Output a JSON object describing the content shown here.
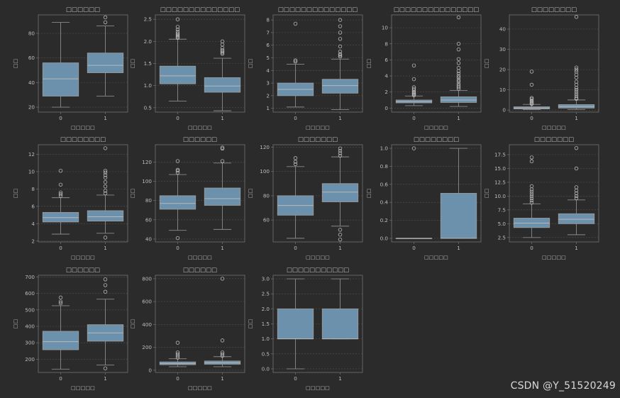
{
  "watermark": "CSDN @Y_51520249",
  "theme": {
    "background": "#2b2b2b",
    "box_fill": "#6b91ad",
    "box_edge": "#9a9a9a",
    "whisker": "#8a8a8a",
    "median": "#b8b8b8",
    "text": "#bdbdbd",
    "grid": "#505050",
    "spine": "#6a6a6a"
  },
  "chart_data": [
    {
      "type": "box",
      "title": "□□□□□□",
      "xlabel": "□□□□□",
      "ylabel": "□□",
      "categories": [
        "0",
        "1"
      ],
      "ylim": [
        16,
        95
      ],
      "yticks": [
        20,
        40,
        60,
        80
      ],
      "tick_labels": [
        "20",
        "40",
        "60",
        "80"
      ],
      "boxes": [
        {
          "whislo": 20,
          "q1": 29,
          "med": 43,
          "q3": 56,
          "whishi": 89,
          "fliers": []
        },
        {
          "whislo": 29,
          "q1": 48,
          "med": 54,
          "q3": 64,
          "whishi": 86,
          "fliers": [
            89,
            93
          ]
        }
      ]
    },
    {
      "type": "box",
      "title": "□□□□□□□□□□□□□□",
      "xlabel": "□□□□□",
      "ylabel": "□□",
      "categories": [
        "0",
        "1"
      ],
      "ylim": [
        0.4,
        2.6
      ],
      "yticks": [
        0.5,
        1.0,
        1.5,
        2.0,
        2.5
      ],
      "tick_labels": [
        "0.5",
        "1.0",
        "1.5",
        "2.0",
        "2.5"
      ],
      "boxes": [
        {
          "whislo": 0.65,
          "q1": 1.04,
          "med": 1.22,
          "q3": 1.44,
          "whishi": 2.05,
          "fliers": [
            2.08,
            2.1,
            2.13,
            2.15,
            2.18,
            2.22,
            2.27,
            2.33,
            2.5
          ]
        },
        {
          "whislo": 0.43,
          "q1": 0.85,
          "med": 0.99,
          "q3": 1.18,
          "whishi": 1.62,
          "fliers": [
            1.72,
            1.75,
            1.78,
            1.8,
            1.85,
            1.93,
            2.0
          ]
        }
      ]
    },
    {
      "type": "box",
      "title": "□□□□□□□□□□□□□□",
      "xlabel": "□□□□□",
      "ylabel": "□□",
      "categories": [
        "0",
        "1"
      ],
      "ylim": [
        0.7,
        8.4
      ],
      "yticks": [
        1,
        2,
        3,
        4,
        5,
        6,
        7,
        8
      ],
      "tick_labels": [
        "1",
        "2",
        "3",
        "4",
        "5",
        "6",
        "7",
        "8"
      ],
      "boxes": [
        {
          "whislo": 1.1,
          "q1": 2.0,
          "med": 2.5,
          "q3": 3.0,
          "whishi": 4.5,
          "fliers": [
            4.7,
            4.8,
            7.7
          ]
        },
        {
          "whislo": 0.9,
          "q1": 2.2,
          "med": 2.8,
          "q3": 3.3,
          "whishi": 4.9,
          "fliers": [
            5.1,
            5.2,
            5.3,
            5.5,
            5.9,
            6.5,
            7.0,
            7.5,
            8.0
          ]
        }
      ]
    },
    {
      "type": "box",
      "title": "□□□□□□□□□□□□□□□",
      "xlabel": "□□□□□",
      "ylabel": "□□",
      "categories": [
        "0",
        "1"
      ],
      "ylim": [
        -0.5,
        11.6
      ],
      "yticks": [
        0,
        2,
        4,
        6,
        8,
        10
      ],
      "tick_labels": [
        "0",
        "2",
        "4",
        "6",
        "8",
        "10"
      ],
      "boxes": [
        {
          "whislo": 0.3,
          "q1": 0.65,
          "med": 0.8,
          "q3": 1.0,
          "whishi": 1.5,
          "fliers": [
            1.6,
            1.7,
            1.8,
            1.9,
            2.0,
            2.2,
            2.4,
            2.6,
            3.6,
            5.3
          ]
        },
        {
          "whislo": 0.2,
          "q1": 0.7,
          "med": 1.0,
          "q3": 1.4,
          "whishi": 2.2,
          "fliers": [
            2.4,
            2.6,
            2.8,
            3.0,
            3.3,
            3.5,
            3.8,
            4.0,
            4.3,
            4.6,
            5.0,
            5.6,
            6.1,
            7.3,
            8.0,
            11.3
          ]
        }
      ]
    },
    {
      "type": "box",
      "title": "□□□□□□□□",
      "xlabel": "□□□□□",
      "ylabel": "□□",
      "categories": [
        "0",
        "1"
      ],
      "ylim": [
        -1,
        47
      ],
      "yticks": [
        0,
        10,
        20,
        30,
        40
      ],
      "tick_labels": [
        "0",
        "10",
        "20",
        "30",
        "40"
      ],
      "boxes": [
        {
          "whislo": 0.2,
          "q1": 0.6,
          "med": 1.0,
          "q3": 1.6,
          "whishi": 2.8,
          "fliers": [
            3.0,
            3.3,
            3.7,
            4.2,
            4.8,
            5.5,
            6.0,
            12.5,
            19.0
          ]
        },
        {
          "whislo": 0.3,
          "q1": 1.0,
          "med": 1.7,
          "q3": 2.7,
          "whishi": 5.0,
          "fliers": [
            5.5,
            6.0,
            7.0,
            8.0,
            9.0,
            10.0,
            11.0,
            12.5,
            14.0,
            16.0,
            17.5,
            19.0,
            20.0,
            21.0,
            46.0
          ]
        }
      ]
    },
    {
      "type": "box",
      "title": "□□□□□□□□",
      "xlabel": "□□□□□",
      "ylabel": "□□",
      "categories": [
        "0",
        "1"
      ],
      "ylim": [
        1.9,
        13.1
      ],
      "yticks": [
        2,
        4,
        6,
        8,
        10,
        12
      ],
      "tick_labels": [
        "2",
        "4",
        "6",
        "8",
        "10",
        "12"
      ],
      "boxes": [
        {
          "whislo": 2.8,
          "q1": 4.2,
          "med": 4.7,
          "q3": 5.3,
          "whishi": 7.0,
          "fliers": [
            7.2,
            7.4,
            7.6,
            8.5,
            10.1
          ]
        },
        {
          "whislo": 2.9,
          "q1": 4.3,
          "med": 4.8,
          "q3": 5.5,
          "whishi": 7.3,
          "fliers": [
            2.4,
            7.5,
            7.8,
            8.3,
            8.8,
            9.3,
            9.6,
            9.9,
            10.1,
            12.7
          ]
        }
      ]
    },
    {
      "type": "box",
      "title": "□□□□□□",
      "xlabel": "□□□□□",
      "ylabel": "□□",
      "categories": [
        "0",
        "1"
      ],
      "ylim": [
        37,
        138
      ],
      "yticks": [
        40,
        60,
        80,
        100,
        120
      ],
      "tick_labels": [
        "40",
        "60",
        "80",
        "100",
        "120"
      ],
      "boxes": [
        {
          "whislo": 49,
          "q1": 71,
          "med": 77,
          "q3": 85,
          "whishi": 107,
          "fliers": [
            41,
            109,
            111,
            112,
            121
          ]
        },
        {
          "whislo": 50,
          "q1": 75,
          "med": 82,
          "q3": 93,
          "whishi": 119,
          "fliers": [
            121,
            134,
            135
          ]
        }
      ]
    },
    {
      "type": "box",
      "title": "□□□□□□□",
      "xlabel": "□□□□□",
      "ylabel": "□□",
      "categories": [
        "0",
        "1"
      ],
      "ylim": [
        42,
        122
      ],
      "yticks": [
        60,
        80,
        100,
        120
      ],
      "tick_labels": [
        "60",
        "80",
        "100",
        "120"
      ],
      "boxes": [
        {
          "whislo": 45,
          "q1": 64,
          "med": 72,
          "q3": 80,
          "whishi": 104,
          "fliers": [
            106,
            108,
            111
          ]
        },
        {
          "whislo": 55,
          "q1": 75,
          "med": 83,
          "q3": 90,
          "whishi": 112,
          "fliers": [
            44,
            48,
            52,
            113,
            115,
            117,
            119
          ]
        }
      ]
    },
    {
      "type": "box",
      "title": "□□□□□□□□",
      "xlabel": "□□□□□",
      "ylabel": "□□",
      "categories": [
        "0",
        "1"
      ],
      "ylim": [
        -0.04,
        1.04
      ],
      "yticks": [
        0.0,
        0.2,
        0.4,
        0.6,
        0.8,
        1.0
      ],
      "tick_labels": [
        "0.0",
        "0.2",
        "0.4",
        "0.6",
        "0.8",
        "1.0"
      ],
      "boxes": [
        {
          "whislo": 0,
          "q1": 0,
          "med": 0,
          "q3": 0,
          "whishi": 0,
          "fliers": [
            1.0
          ]
        },
        {
          "whislo": 0,
          "q1": 0,
          "med": 0,
          "q3": 0.5,
          "whishi": 1.0,
          "fliers": []
        }
      ]
    },
    {
      "type": "box",
      "title": "□□□□□□□",
      "xlabel": "□□□□□",
      "ylabel": "□□",
      "categories": [
        "0",
        "1"
      ],
      "ylim": [
        1.7,
        19.3
      ],
      "yticks": [
        2.5,
        5.0,
        7.5,
        10.0,
        12.5,
        15.0,
        17.5
      ],
      "tick_labels": [
        "2.5",
        "5.0",
        "7.5",
        "10.0",
        "12.5",
        "15.0",
        "17.5"
      ],
      "boxes": [
        {
          "whislo": 2.5,
          "q1": 4.3,
          "med": 5.1,
          "q3": 6.0,
          "whishi": 8.6,
          "fliers": [
            8.8,
            9.2,
            9.6,
            10.0,
            10.4,
            10.8,
            11.2,
            11.8,
            16.3,
            17.0
          ]
        },
        {
          "whislo": 3.0,
          "q1": 5.0,
          "med": 5.8,
          "q3": 6.8,
          "whishi": 9.3,
          "fliers": [
            9.6,
            10.0,
            10.5,
            11.0,
            11.6,
            15.0,
            18.7
          ]
        }
      ]
    },
    {
      "type": "box",
      "title": "□□□□□□",
      "xlabel": "□□□□□",
      "ylabel": "□□",
      "categories": [
        "0",
        "1"
      ],
      "ylim": [
        120,
        710
      ],
      "yticks": [
        200,
        300,
        400,
        500,
        600,
        700
      ],
      "tick_labels": [
        "200",
        "300",
        "400",
        "500",
        "600",
        "700"
      ],
      "boxes": [
        {
          "whislo": 140,
          "q1": 258,
          "med": 307,
          "q3": 370,
          "whishi": 525,
          "fliers": [
            540,
            550,
            575
          ]
        },
        {
          "whislo": 165,
          "q1": 310,
          "med": 360,
          "q3": 410,
          "whishi": 565,
          "fliers": [
            145,
            610,
            650,
            685
          ]
        }
      ]
    },
    {
      "type": "box",
      "title": "□□□□□□",
      "xlabel": "□□□□□",
      "ylabel": "□□",
      "categories": [
        "0",
        "1"
      ],
      "ylim": [
        -20,
        830
      ],
      "yticks": [
        0,
        200,
        400,
        600,
        800
      ],
      "tick_labels": [
        "0",
        "200",
        "400",
        "600",
        "800"
      ],
      "boxes": [
        {
          "whislo": 30,
          "q1": 48,
          "med": 58,
          "q3": 72,
          "whishi": 100,
          "fliers": [
            110,
            125,
            140,
            155,
            240
          ]
        },
        {
          "whislo": 30,
          "q1": 52,
          "med": 64,
          "q3": 80,
          "whishi": 118,
          "fliers": [
            125,
            140,
            155,
            260,
            800
          ]
        }
      ]
    },
    {
      "type": "box",
      "title": "□□□□□□□□□□□",
      "xlabel": "□□□□□",
      "ylabel": "□□",
      "categories": [
        "0",
        "1"
      ],
      "ylim": [
        -0.12,
        3.12
      ],
      "yticks": [
        0.0,
        0.5,
        1.0,
        1.5,
        2.0,
        2.5,
        3.0
      ],
      "tick_labels": [
        "0.0",
        "0.5",
        "1.0",
        "1.5",
        "2.0",
        "2.5",
        "3.0"
      ],
      "boxes": [
        {
          "whislo": 0,
          "q1": 1,
          "med": 1,
          "q3": 2,
          "whishi": 3,
          "fliers": []
        },
        {
          "whislo": 1,
          "q1": 1,
          "med": 1,
          "q3": 2,
          "whishi": 3,
          "fliers": []
        }
      ]
    }
  ]
}
